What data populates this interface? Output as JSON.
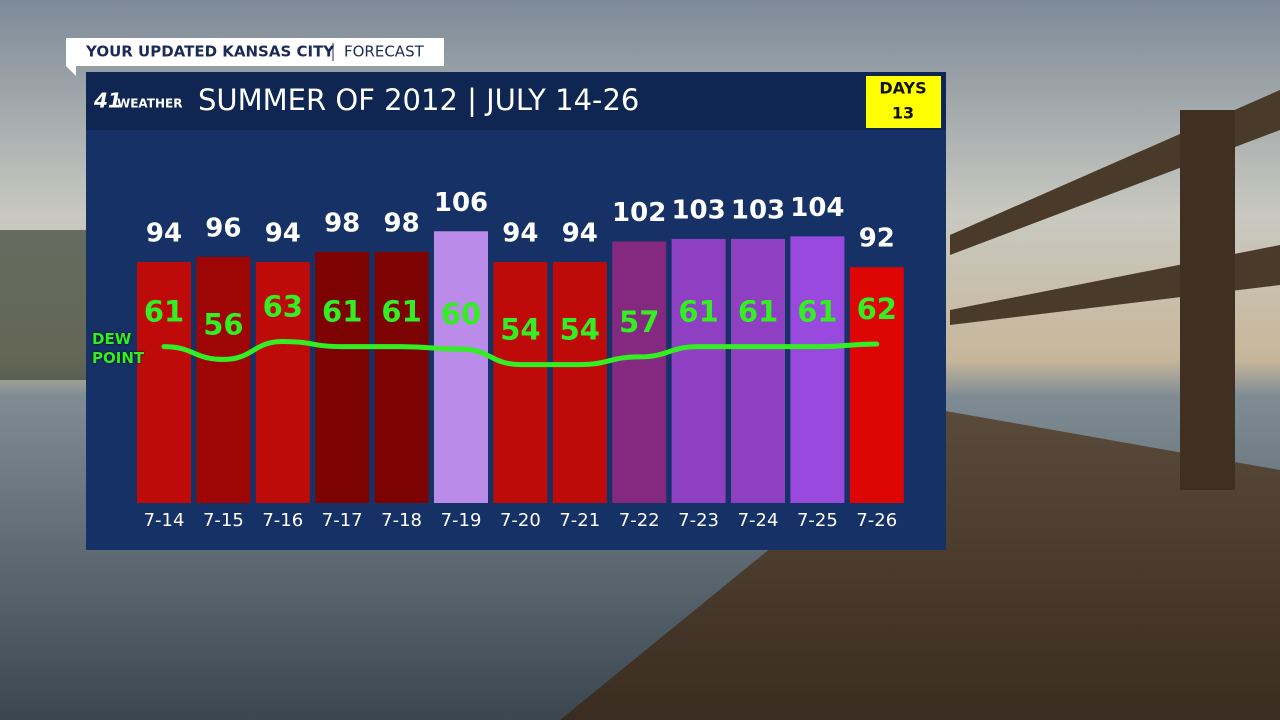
{
  "banner": {
    "title": "YOUR UPDATED KANSAS CITY",
    "section": "FORECAST"
  },
  "logo": {
    "number": "41",
    "word": "WEATHER"
  },
  "days_box": {
    "label": "DAYS",
    "value": "13"
  },
  "chart_data": {
    "type": "bar",
    "title": "SUMMER OF 2012 | JULY 14-26",
    "categories": [
      "7-14",
      "7-15",
      "7-16",
      "7-17",
      "7-18",
      "7-19",
      "7-20",
      "7-21",
      "7-22",
      "7-23",
      "7-24",
      "7-25",
      "7-26"
    ],
    "values": [
      94,
      96,
      94,
      98,
      98,
      106,
      94,
      94,
      102,
      103,
      103,
      104,
      92
    ],
    "colors": [
      "#bf0a0a",
      "#9e0505",
      "#bf0a0a",
      "#7d0303",
      "#7d0303",
      "#bb8be9",
      "#bf0a0a",
      "#bf0a0a",
      "#84297f",
      "#8e3fc2",
      "#8e3fc2",
      "#9a49df",
      "#de0505"
    ],
    "series": [
      {
        "name": "DEW POINT",
        "color": "#33ee22",
        "values": [
          61,
          56,
          63,
          61,
          61,
          60,
          54,
          54,
          57,
          61,
          61,
          61,
          62
        ]
      }
    ],
    "ylim": [
      0,
      110
    ]
  }
}
